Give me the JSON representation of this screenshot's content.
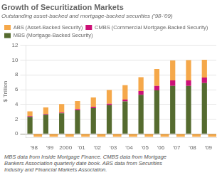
{
  "chart_data": {
    "type": "bar",
    "stacked": true,
    "title": "Growth of Securitization Markets",
    "subtitle": "Outstanding asset-backed and mortgage-backed securities (’98-’09)",
    "ylabel": "$ Trillion",
    "footnote": "MBS data from Inside Mortgage Finance. CMBS data from Mortgage\nBankers Association quarterly date book. ABS data from Securities\nIndustry and Financial Markets Association.",
    "categories": [
      "'98",
      "'99",
      "2000",
      "'01",
      "'02",
      "'03",
      "'04",
      "'05",
      "'06",
      "'07",
      "'08",
      "'09"
    ],
    "series": [
      {
        "name": "MBS (Mortgage-Backed Security)",
        "color": "#556b2f",
        "values": [
          2.3,
          2.6,
          2.8,
          3.2,
          3.5,
          3.9,
          4.4,
          5.3,
          5.9,
          6.5,
          6.5,
          6.9
        ]
      },
      {
        "name": "CMBS (Commercial Mortgage-Backed Security)",
        "color": "#cc1177",
        "values": [
          0.1,
          0.1,
          0.1,
          0.15,
          0.15,
          0.2,
          0.25,
          0.5,
          0.6,
          0.75,
          0.75,
          0.75
        ]
      },
      {
        "name": "ABS (Asset-Backed Security)",
        "color": "#f5a84a",
        "values": [
          0.65,
          0.9,
          1.15,
          1.1,
          1.3,
          1.85,
          1.95,
          1.9,
          2.3,
          2.7,
          2.75,
          2.4
        ],
        "band_below_zero": 0.35
      }
    ],
    "ylim": [
      -0.5,
      12
    ],
    "yticks": [
      0,
      2,
      4,
      6,
      8,
      10,
      12
    ],
    "grid": true,
    "legend": "top"
  }
}
